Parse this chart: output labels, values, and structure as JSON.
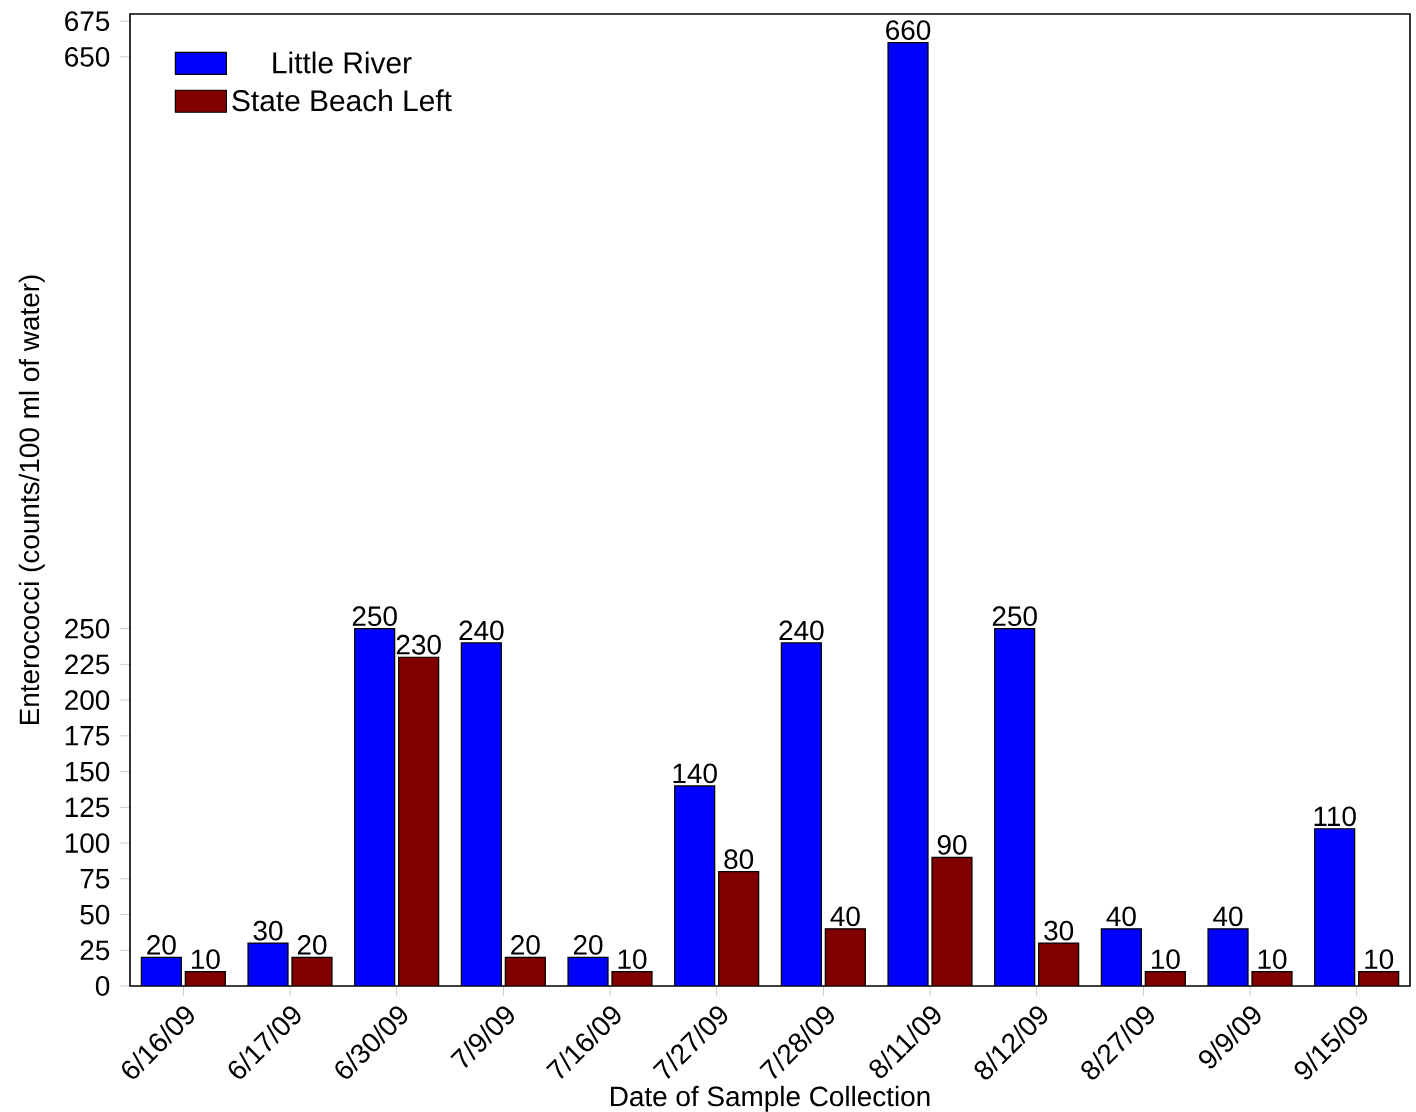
{
  "chart_data": {
    "type": "bar",
    "xlabel": "Date of Sample Collection",
    "ylabel": "Enterococci (counts/100 ml of water)",
    "categories": [
      "6/16/09",
      "6/17/09",
      "6/30/09",
      "7/9/09",
      "7/16/09",
      "7/27/09",
      "7/28/09",
      "8/11/09",
      "8/12/09",
      "8/27/09",
      "9/9/09",
      "9/15/09"
    ],
    "series": [
      {
        "name": "Little River",
        "color": "#0000ff",
        "values": [
          20,
          30,
          250,
          240,
          20,
          140,
          240,
          660,
          250,
          40,
          40,
          110
        ]
      },
      {
        "name": "State Beach Left",
        "color": "#800000",
        "values": [
          10,
          20,
          230,
          20,
          10,
          80,
          40,
          90,
          30,
          10,
          10,
          10
        ]
      }
    ],
    "ylim": [
      0,
      680
    ],
    "yticks": [
      0,
      25,
      50,
      75,
      100,
      125,
      150,
      175,
      200,
      225,
      250,
      650,
      675
    ],
    "data_labels": true,
    "legend": "top left",
    "grid": false
  }
}
